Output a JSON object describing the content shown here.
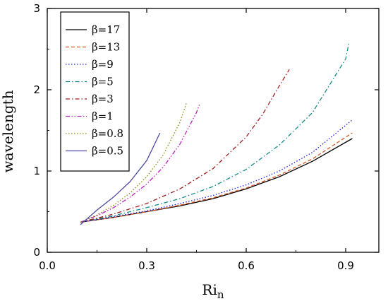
{
  "chart_data": {
    "type": "line",
    "title": "",
    "xlabel_main": "Ri",
    "xlabel_sub": "n",
    "ylabel": "wavelength",
    "xlim": [
      0.0,
      1.0
    ],
    "ylim": [
      0,
      3
    ],
    "xticks": [
      0.0,
      0.3,
      0.6,
      0.9
    ],
    "xtick_labels": [
      "0.0",
      "0.3",
      "0.6",
      "0.9"
    ],
    "yticks": [
      0,
      1,
      2,
      3
    ],
    "ytick_labels": [
      "0",
      "1",
      "2",
      "3"
    ],
    "grid": false,
    "legend_position": "top-left",
    "series": [
      {
        "name": "β=17",
        "color": "#000000",
        "dash": "solid",
        "x": [
          0.1,
          0.2,
          0.3,
          0.4,
          0.5,
          0.6,
          0.7,
          0.8,
          0.92
        ],
        "y": [
          0.37,
          0.43,
          0.5,
          0.57,
          0.66,
          0.78,
          0.93,
          1.12,
          1.4
        ]
      },
      {
        "name": "β=13",
        "color": "#d9541e",
        "dash": "dashed",
        "x": [
          0.1,
          0.2,
          0.3,
          0.4,
          0.5,
          0.6,
          0.7,
          0.8,
          0.92
        ],
        "y": [
          0.37,
          0.43,
          0.5,
          0.58,
          0.67,
          0.79,
          0.95,
          1.15,
          1.47
        ]
      },
      {
        "name": "β=9",
        "color": "#1f1fe0",
        "dash": "dotted",
        "x": [
          0.1,
          0.2,
          0.3,
          0.4,
          0.5,
          0.6,
          0.7,
          0.8,
          0.92
        ],
        "y": [
          0.37,
          0.44,
          0.51,
          0.6,
          0.7,
          0.83,
          1.0,
          1.23,
          1.63
        ]
      },
      {
        "name": "β=5",
        "color": "#168a8a",
        "dash": "dashdot",
        "x": [
          0.1,
          0.2,
          0.3,
          0.4,
          0.5,
          0.6,
          0.7,
          0.8,
          0.9,
          0.91
        ],
        "y": [
          0.37,
          0.45,
          0.55,
          0.66,
          0.81,
          1.02,
          1.32,
          1.72,
          2.38,
          2.58
        ]
      },
      {
        "name": "β=3",
        "color": "#a02020",
        "dash": "dashdot",
        "x": [
          0.1,
          0.2,
          0.3,
          0.4,
          0.5,
          0.6,
          0.65,
          0.7,
          0.73
        ],
        "y": [
          0.37,
          0.47,
          0.6,
          0.78,
          1.03,
          1.42,
          1.7,
          2.05,
          2.25
        ]
      },
      {
        "name": "β=1",
        "color": "#c020c0",
        "dash": "dashdotdot",
        "x": [
          0.1,
          0.15,
          0.2,
          0.25,
          0.3,
          0.35,
          0.4,
          0.45,
          0.46
        ],
        "y": [
          0.37,
          0.45,
          0.55,
          0.68,
          0.84,
          1.05,
          1.33,
          1.72,
          1.83
        ]
      },
      {
        "name": "β=0.8",
        "color": "#8a8a10",
        "dash": "dotted",
        "x": [
          0.1,
          0.15,
          0.2,
          0.25,
          0.3,
          0.35,
          0.4,
          0.42
        ],
        "y": [
          0.37,
          0.46,
          0.58,
          0.73,
          0.93,
          1.2,
          1.6,
          1.84
        ]
      },
      {
        "name": "β=0.5",
        "color": "#4a4aa0",
        "dash": "solid",
        "x": [
          0.1,
          0.15,
          0.2,
          0.25,
          0.3,
          0.34
        ],
        "y": [
          0.34,
          0.52,
          0.68,
          0.87,
          1.13,
          1.47
        ]
      }
    ]
  }
}
